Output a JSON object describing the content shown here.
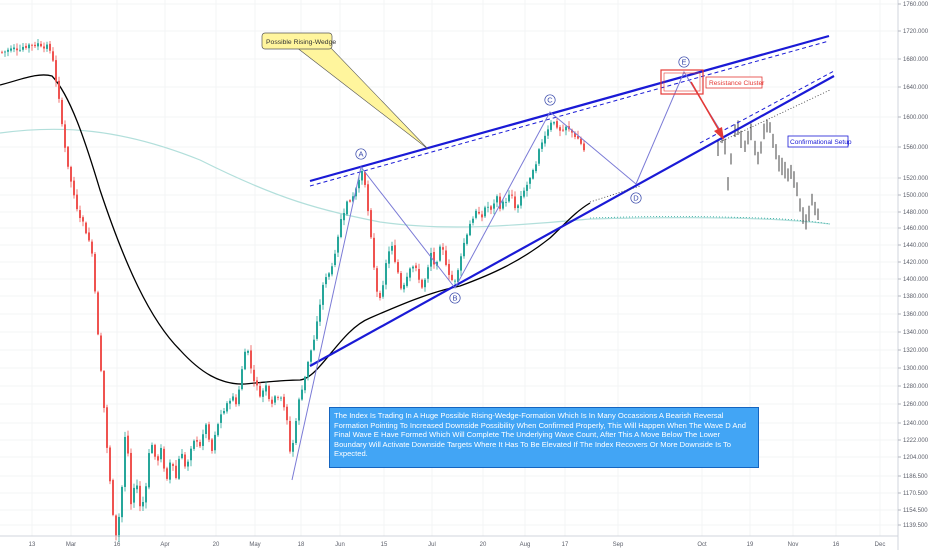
{
  "chart_data": {
    "type": "candlestick",
    "price_axis": {
      "ticks": [
        "1760.000",
        "1720.000",
        "1680.000",
        "1640.000",
        "1600.000",
        "1560.000",
        "1520.000",
        "1500.000",
        "1480.000",
        "1460.000",
        "1440.000",
        "1420.000",
        "1400.000",
        "1380.000",
        "1360.000",
        "1340.000",
        "1320.000",
        "1300.000",
        "1280.000",
        "1260.000",
        "1240.000",
        "1222.000",
        "1204.000",
        "1186.500",
        "1170.500",
        "1154.500",
        "1139.500"
      ],
      "range": [
        1130,
        1770
      ],
      "scale": "log"
    },
    "time_axis": {
      "ticks": [
        "13",
        "Mar",
        "16",
        "Apr",
        "20",
        "May",
        "18",
        "Jun",
        "15",
        "Jul",
        "20",
        "Aug",
        "17",
        "Sep",
        "Oct",
        "19",
        "Nov",
        "16",
        "Dec"
      ]
    },
    "annotations": {
      "pattern_label": "Possible Rising-Wedge",
      "resistance_label": "Resistance Cluster",
      "setup_label": "Confirmational Setup",
      "wave_labels": [
        "A",
        "B",
        "C",
        "D",
        "E"
      ],
      "analysis_text": "The Index Is Trading In  A Huge Possible Rising-Wedge-Formation Which Is In Many Occassions A Bearish Reversal Formation Pointing To Increased Downside Possibility When Confirmed Properly, This Will Happen When The Wave D And Final Wave E Have Formed Which Will Complete The Underlying Wave Count, After This A Move Below The Lower Boundary Will Activate Downside Targets Where It Has To Be Elevated If The Index Recovers Or More Downside Is To Expected."
    },
    "colors": {
      "up": "#26a69a",
      "down": "#ef5350",
      "wedge": "#1a1ad6",
      "wave_path": "#7b7bd6",
      "ma_fast": "#000000",
      "ma_slow": "#b2dfdb",
      "resistance": "#e53935",
      "analysis_box": "#42a5f5"
    }
  }
}
